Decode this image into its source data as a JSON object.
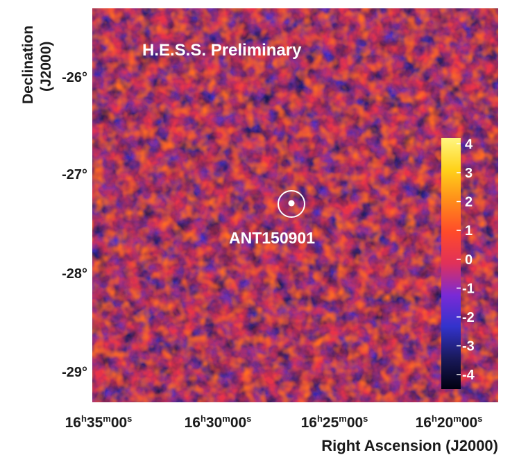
{
  "chart_data": {
    "type": "heatmap",
    "title": "",
    "watermark": "H.E.S.S. Preliminary",
    "xlabel": "Right Ascension (J2000)",
    "ylabel_lines": [
      "Declination",
      "(J2000)"
    ],
    "x_ticks": [
      {
        "h": "16",
        "m": "35",
        "s": "00"
      },
      {
        "h": "16",
        "m": "30",
        "s": "00"
      },
      {
        "h": "16",
        "m": "25",
        "s": "00"
      },
      {
        "h": "16",
        "m": "20",
        "s": "00"
      }
    ],
    "y_ticks": [
      "-26°",
      "-27°",
      "-28°",
      "-29°"
    ],
    "colorbar": {
      "ticks": [
        "4",
        "3",
        "2",
        "1",
        "0",
        "-1",
        "-2",
        "-3",
        "-4"
      ],
      "range": [
        -4.5,
        4.2
      ],
      "colors": [
        "#000010",
        "#1a1a5c",
        "#3333cc",
        "#7a2ad6",
        "#e0305a",
        "#ff4a2a",
        "#ff8c1a",
        "#ffd21a",
        "#fff680"
      ]
    },
    "source": {
      "name": "ANT150901",
      "marker": "circle-with-dot"
    },
    "grid": false
  }
}
